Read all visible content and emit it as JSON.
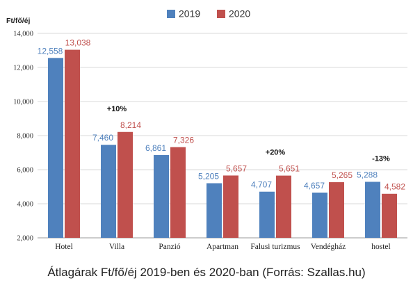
{
  "chart_data": {
    "type": "bar",
    "categories": [
      "Hotel",
      "Villa",
      "Panzió",
      "Apartman",
      "Falusi turizmus",
      "Vendégház",
      "hostel"
    ],
    "series": [
      {
        "name": "2019",
        "color": "#4f81bd",
        "values": [
          12558,
          7460,
          6861,
          5205,
          4707,
          4657,
          5288
        ],
        "labels": [
          "12,558",
          "7,460",
          "6,861",
          "5,205",
          "4,707",
          "4,657",
          "5,288"
        ]
      },
      {
        "name": "2020",
        "color": "#c0504d",
        "values": [
          13038,
          8214,
          7326,
          5657,
          5651,
          5265,
          4582
        ],
        "labels": [
          "13,038",
          "8,214",
          "7,326",
          "5,657",
          "5,651",
          "5,265",
          "4,582"
        ]
      }
    ],
    "ylabel": "Ft/fő/éj",
    "ylim": [
      2000,
      14000
    ],
    "yticks": [
      2000,
      4000,
      6000,
      8000,
      10000,
      12000,
      14000
    ],
    "ytick_labels": [
      "2,000",
      "4,000",
      "6,000",
      "8,000",
      "10,000",
      "12,000",
      "14,000"
    ],
    "grid": true,
    "legend_position": "top-center",
    "annotations": [
      {
        "category": "Villa",
        "text": "+10%"
      },
      {
        "category": "Falusi turizmus",
        "text": "+20%"
      },
      {
        "category": "hostel",
        "text": "-13%"
      }
    ]
  },
  "caption": "Átlagárak Ft/fő/éj 2019-ben és 2020-ban (Forrás: Szallas.hu)"
}
